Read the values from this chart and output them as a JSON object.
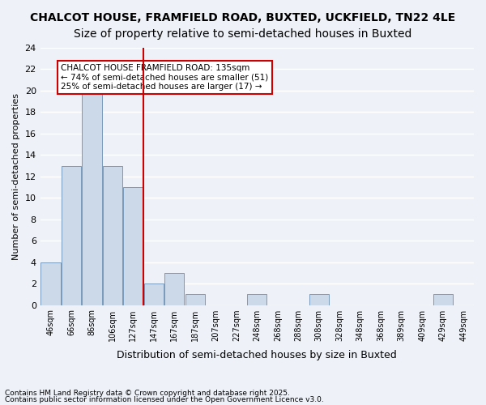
{
  "title1": "CHALCOT HOUSE, FRAMFIELD ROAD, BUXTED, UCKFIELD, TN22 4LE",
  "title2": "Size of property relative to semi-detached houses in Buxted",
  "xlabel": "Distribution of semi-detached houses by size in Buxted",
  "ylabel": "Number of semi-detached properties",
  "bin_labels": [
    "46sqm",
    "66sqm",
    "86sqm",
    "106sqm",
    "127sqm",
    "147sqm",
    "167sqm",
    "187sqm",
    "207sqm",
    "227sqm",
    "248sqm",
    "268sqm",
    "288sqm",
    "308sqm",
    "328sqm",
    "348sqm",
    "368sqm",
    "389sqm",
    "409sqm",
    "429sqm",
    "449sqm"
  ],
  "bin_values": [
    4,
    13,
    20,
    13,
    11,
    2,
    3,
    1,
    0,
    0,
    1,
    0,
    0,
    1,
    0,
    0,
    0,
    0,
    0,
    1,
    0
  ],
  "bar_color": "#ccd9e8",
  "bar_edge_color": "#7799bb",
  "property_value": 135,
  "property_bin_index": 4,
  "red_line_x": 4.5,
  "annotation_title": "CHALCOT HOUSE FRAMFIELD ROAD: 135sqm",
  "annotation_line1": "← 74% of semi-detached houses are smaller (51)",
  "annotation_line2": "25% of semi-detached houses are larger (17) →",
  "annotation_box_color": "#ffffff",
  "annotation_box_edge": "#cc0000",
  "red_line_color": "#cc0000",
  "ylim": [
    0,
    24
  ],
  "yticks": [
    0,
    2,
    4,
    6,
    8,
    10,
    12,
    14,
    16,
    18,
    20,
    22,
    24
  ],
  "footnote1": "Contains HM Land Registry data © Crown copyright and database right 2025.",
  "footnote2": "Contains public sector information licensed under the Open Government Licence v3.0.",
  "bg_color": "#eef2f8",
  "grid_color": "#ffffff",
  "title_fontsize": 10,
  "subtitle_fontsize": 10
}
